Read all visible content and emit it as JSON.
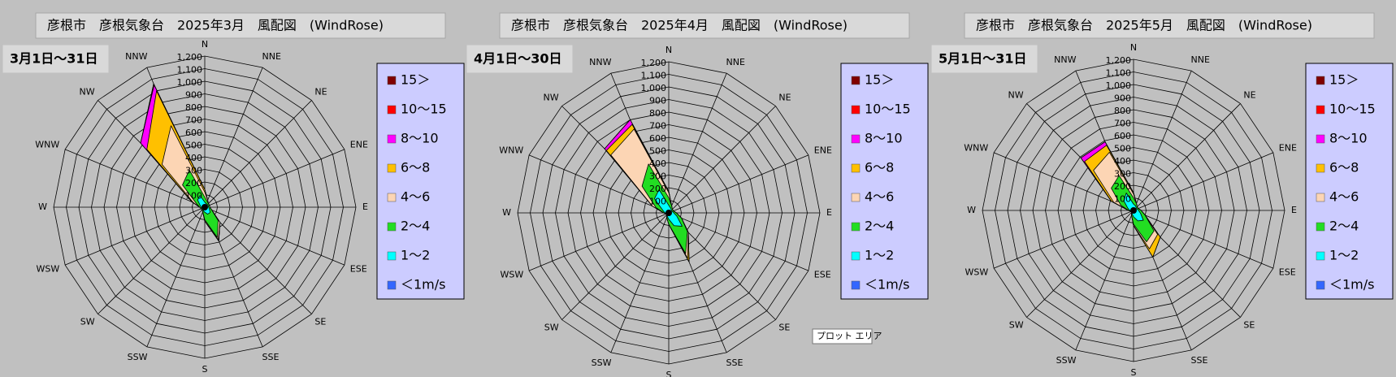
{
  "chart_data": [
    {
      "type": "radar",
      "title": "彦根市　彦根気象台　2025年3月　風配図　(WindRose)",
      "subtitle": "3月1日～31日",
      "categories": [
        "N",
        "NNE",
        "NE",
        "ENE",
        "E",
        "ESE",
        "SE",
        "SSE",
        "S",
        "SSW",
        "SW",
        "WSW",
        "W",
        "WNW",
        "NW",
        "NNW"
      ],
      "ylim": [
        0,
        1200
      ],
      "yticks": [
        100,
        200,
        300,
        400,
        500,
        600,
        700,
        800,
        900,
        {
          "value": 1000,
          "label": "1,000"
        },
        {
          "value": 1100,
          "label": "1,100"
        },
        {
          "value": 1200,
          "label": "1,200"
        }
      ],
      "stacked": true,
      "series": [
        {
          "name": "15＞",
          "color": "#800000",
          "values": [
            0,
            0,
            0,
            0,
            0,
            0,
            0,
            0,
            0,
            0,
            0,
            0,
            0,
            0,
            0,
            0
          ]
        },
        {
          "name": "10～15",
          "color": "#ff0000",
          "values": [
            0,
            0,
            0,
            0,
            0,
            0,
            0,
            0,
            0,
            0,
            0,
            0,
            0,
            0,
            0,
            10
          ]
        },
        {
          "name": "8～10",
          "color": "#ff00ff",
          "values": [
            0,
            0,
            0,
            0,
            0,
            0,
            0,
            0,
            0,
            0,
            0,
            0,
            0,
            0,
            70,
            50
          ]
        },
        {
          "name": "6～8",
          "color": "#ffc000",
          "values": [
            20,
            0,
            0,
            0,
            0,
            0,
            0,
            10,
            0,
            0,
            0,
            0,
            0,
            10,
            170,
            300
          ]
        },
        {
          "name": "4～6",
          "color": "#fcd5b4",
          "values": [
            40,
            10,
            0,
            0,
            0,
            0,
            20,
            20,
            10,
            0,
            0,
            0,
            0,
            30,
            230,
            380
          ]
        },
        {
          "name": "2～4",
          "color": "#22dd22",
          "values": [
            40,
            20,
            10,
            10,
            10,
            20,
            90,
            200,
            60,
            10,
            10,
            10,
            10,
            30,
            170,
            220
          ]
        },
        {
          "name": "1～2",
          "color": "#00ffff",
          "values": [
            30,
            20,
            20,
            20,
            20,
            30,
            50,
            50,
            30,
            20,
            10,
            10,
            20,
            30,
            70,
            90
          ]
        },
        {
          "name": "＜1m/s",
          "color": "#3366ff",
          "values": [
            10,
            10,
            10,
            10,
            10,
            10,
            10,
            10,
            10,
            10,
            10,
            10,
            10,
            10,
            10,
            10
          ]
        }
      ]
    },
    {
      "type": "radar",
      "title": "彦根市　彦根気象台　2025年4月　風配図　(WindRose)",
      "subtitle": "4月1日～30日",
      "categories": [
        "N",
        "NNE",
        "NE",
        "ENE",
        "E",
        "ESE",
        "SE",
        "SSE",
        "S",
        "SSW",
        "SW",
        "WSW",
        "W",
        "WNW",
        "NW",
        "NNW"
      ],
      "ylim": [
        0,
        1200
      ],
      "yticks": [
        100,
        200,
        300,
        400,
        500,
        600,
        700,
        800,
        900,
        {
          "value": 1000,
          "label": "1,000"
        },
        {
          "value": 1100,
          "label": "1,100"
        },
        {
          "value": 1200,
          "label": "1,200"
        }
      ],
      "stacked": true,
      "tooltip": "プロット エリア",
      "series": [
        {
          "name": "15＞",
          "color": "#800000",
          "values": [
            0,
            0,
            0,
            0,
            0,
            0,
            0,
            0,
            0,
            0,
            0,
            0,
            0,
            0,
            0,
            0
          ]
        },
        {
          "name": "10～15",
          "color": "#ff0000",
          "values": [
            0,
            0,
            0,
            0,
            0,
            0,
            0,
            0,
            0,
            0,
            0,
            0,
            0,
            0,
            0,
            0
          ]
        },
        {
          "name": "8～10",
          "color": "#ff00ff",
          "values": [
            0,
            0,
            0,
            0,
            0,
            0,
            0,
            0,
            0,
            0,
            0,
            0,
            0,
            0,
            20,
            40
          ]
        },
        {
          "name": "6～8",
          "color": "#ffc000",
          "values": [
            10,
            0,
            0,
            0,
            0,
            0,
            0,
            30,
            0,
            0,
            0,
            0,
            0,
            0,
            50,
            40
          ]
        },
        {
          "name": "4～6",
          "color": "#fcd5b4",
          "values": [
            40,
            0,
            0,
            0,
            0,
            0,
            10,
            40,
            0,
            0,
            0,
            0,
            0,
            30,
            350,
            300
          ]
        },
        {
          "name": "2～4",
          "color": "#22dd22",
          "values": [
            60,
            20,
            10,
            10,
            20,
            40,
            60,
            240,
            40,
            10,
            0,
            0,
            10,
            60,
            140,
            220
          ]
        },
        {
          "name": "1～2",
          "color": "#00ffff",
          "values": [
            50,
            30,
            20,
            20,
            30,
            60,
            140,
            100,
            40,
            20,
            10,
            10,
            20,
            40,
            150,
            190
          ]
        },
        {
          "name": "＜1m/s",
          "color": "#3366ff",
          "values": [
            10,
            10,
            10,
            10,
            10,
            10,
            10,
            10,
            10,
            10,
            10,
            10,
            10,
            10,
            10,
            10
          ]
        }
      ]
    },
    {
      "type": "radar",
      "title": "彦根市　彦根気象台　2025年5月　風配図　(WindRose)",
      "subtitle": "5月1日～31日",
      "categories": [
        "N",
        "NNE",
        "NE",
        "ENE",
        "E",
        "ESE",
        "SE",
        "SSE",
        "S",
        "SSW",
        "SW",
        "WSW",
        "W",
        "WNW",
        "NW",
        "NNW"
      ],
      "ylim": [
        0,
        1200
      ],
      "yticks": [
        100,
        200,
        300,
        400,
        500,
        600,
        700,
        800,
        900,
        {
          "value": 1000,
          "label": "1,000"
        },
        {
          "value": 1100,
          "label": "1,100"
        },
        {
          "value": 1200,
          "label": "1,200"
        }
      ],
      "stacked": true,
      "series": [
        {
          "name": "15＞",
          "color": "#800000",
          "values": [
            0,
            0,
            0,
            0,
            0,
            0,
            0,
            0,
            0,
            0,
            0,
            0,
            0,
            0,
            0,
            0
          ]
        },
        {
          "name": "10～15",
          "color": "#ff0000",
          "values": [
            0,
            0,
            0,
            0,
            0,
            0,
            0,
            0,
            0,
            0,
            0,
            0,
            0,
            0,
            0,
            0
          ]
        },
        {
          "name": "8～10",
          "color": "#ff00ff",
          "values": [
            0,
            0,
            0,
            0,
            0,
            0,
            0,
            0,
            0,
            0,
            0,
            0,
            0,
            0,
            40,
            30
          ]
        },
        {
          "name": "6～8",
          "color": "#ffc000",
          "values": [
            10,
            0,
            0,
            0,
            0,
            0,
            30,
            70,
            0,
            0,
            0,
            0,
            0,
            20,
            100,
            60
          ]
        },
        {
          "name": "4～6",
          "color": "#fcd5b4",
          "values": [
            30,
            0,
            0,
            0,
            0,
            0,
            40,
            60,
            10,
            0,
            0,
            0,
            0,
            60,
            200,
            200
          ]
        },
        {
          "name": "2～4",
          "color": "#22dd22",
          "values": [
            50,
            20,
            10,
            10,
            20,
            40,
            120,
            180,
            60,
            10,
            0,
            0,
            10,
            60,
            140,
            150
          ]
        },
        {
          "name": "1～2",
          "color": "#00ffff",
          "values": [
            40,
            30,
            20,
            20,
            30,
            50,
            100,
            80,
            40,
            20,
            10,
            10,
            20,
            40,
            100,
            140
          ]
        },
        {
          "name": "＜1m/s",
          "color": "#3366ff",
          "values": [
            10,
            10,
            10,
            10,
            10,
            10,
            10,
            10,
            10,
            10,
            10,
            10,
            10,
            10,
            10,
            10
          ]
        }
      ]
    }
  ]
}
